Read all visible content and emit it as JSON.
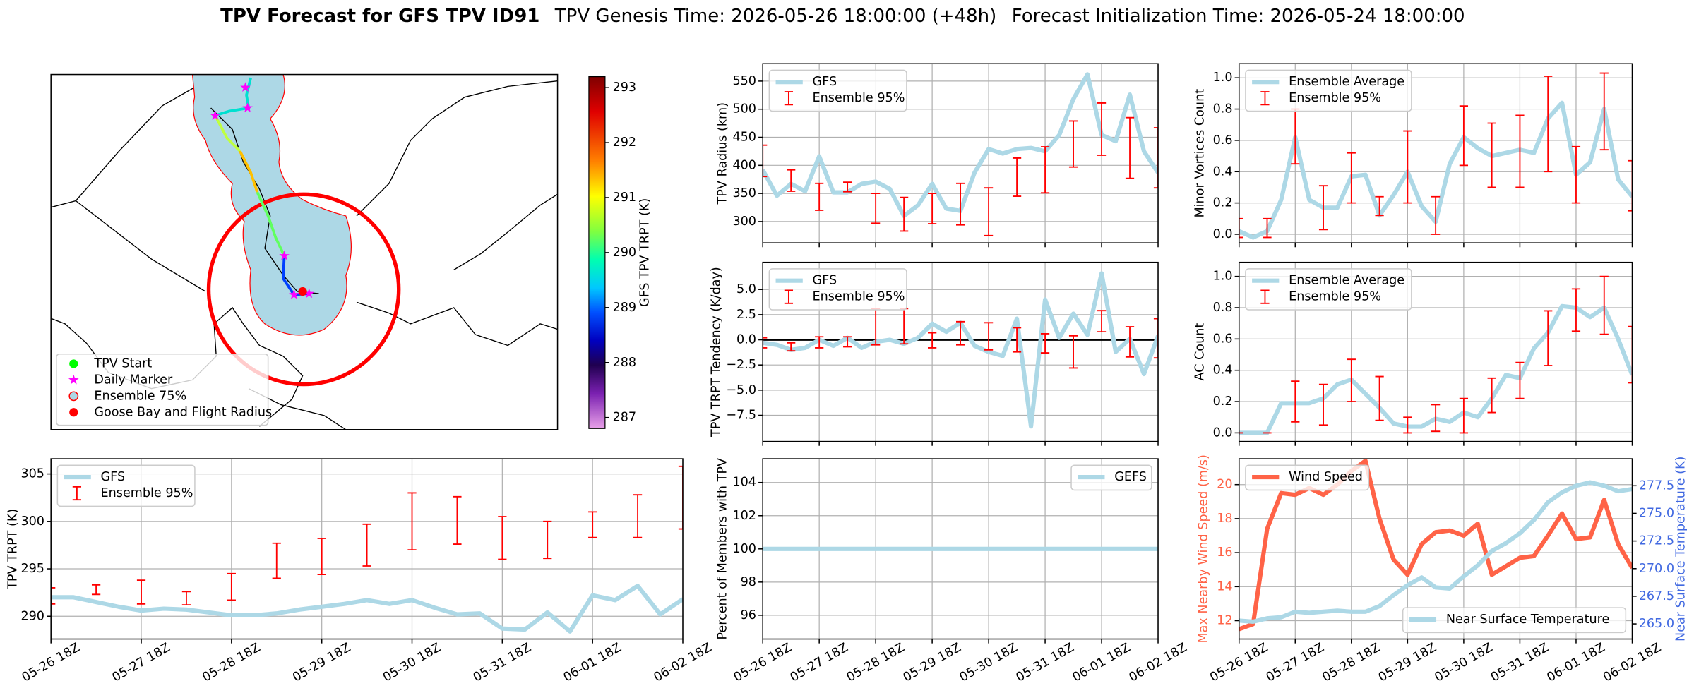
{
  "title": {
    "bold": "TPV Forecast for GFS TPV ID91",
    "genesis": "TPV Genesis Time: 2026-05-26 18:00:00 (+48h)",
    "init": "Forecast Initialization Time: 2026-05-24 18:00:00"
  },
  "map": {
    "legend": [
      "TPV Start",
      "Daily Marker",
      "Ensemble 75%",
      "Goose Bay and Flight Radius"
    ],
    "colorbar": {
      "label": "GFS TPV TRPT (K)",
      "lim": [
        286.8,
        293.2
      ],
      "ticks": [
        287,
        288,
        289,
        290,
        291,
        292,
        293
      ]
    }
  },
  "chart_data": [
    {
      "type": "line",
      "ylabel": "TPV Radius (km)",
      "ylim": [
        262,
        581
      ],
      "yticks": [
        300,
        350,
        400,
        450,
        500,
        550
      ],
      "grid": true,
      "legend": "upper left",
      "series": [
        {
          "name": "GFS",
          "color": "#add8e6",
          "values": [
            392,
            346,
            367,
            354,
            416,
            352,
            352,
            367,
            371,
            358,
            310,
            329,
            367,
            323,
            319,
            387,
            429,
            421,
            429,
            431,
            425,
            454,
            518,
            562,
            454,
            443,
            526,
            425,
            387
          ]
        },
        {
          "name": "Ensemble 95%",
          "color": "#ff0000",
          "kind": "errorbar",
          "low": [
            380,
            null,
            354,
            null,
            320,
            null,
            353,
            null,
            297,
            null,
            283,
            null,
            296,
            null,
            294,
            null,
            275,
            null,
            345,
            null,
            351,
            null,
            397,
            null,
            418,
            null,
            377,
            null,
            360
          ],
          "high": [
            436,
            null,
            392,
            null,
            368,
            null,
            370,
            null,
            350,
            null,
            343,
            null,
            350,
            null,
            368,
            null,
            360,
            null,
            413,
            null,
            433,
            null,
            479,
            null,
            511,
            null,
            485,
            null,
            467
          ]
        }
      ]
    },
    {
      "type": "line",
      "ylabel": "TPV TRPT Tendency (K/day)",
      "ylim": [
        -10.1,
        7.7
      ],
      "yticks": [
        {
          "value": -7.5,
          "label": "−7.5"
        },
        {
          "value": -5,
          "label": "−5.0"
        },
        {
          "value": -2.5,
          "label": "−2.5"
        },
        {
          "value": 0,
          "label": "0.0"
        },
        2.5,
        {
          "value": 5,
          "label": "5.0"
        }
      ],
      "grid": true,
      "legend": "upper left",
      "hline": 0,
      "series": [
        {
          "name": "GFS",
          "color": "#add8e6",
          "values": [
            -0.3,
            -0.5,
            -1.0,
            -0.8,
            0.0,
            -0.6,
            0.2,
            -0.8,
            -0.2,
            0.0,
            -0.4,
            0.2,
            1.6,
            0.8,
            1.7,
            -0.6,
            -1.2,
            -1.6,
            2.1,
            -8.6,
            4.0,
            0.2,
            2.6,
            0.5,
            6.6,
            -1.2,
            0.1,
            -3.4,
            0.4
          ]
        },
        {
          "name": "Ensemble 95%",
          "color": "#ff0000",
          "kind": "errorbar",
          "low": [
            -0.8,
            null,
            -1.1,
            null,
            -0.8,
            null,
            -0.7,
            null,
            -0.5,
            null,
            -0.4,
            null,
            -0.8,
            null,
            -0.5,
            null,
            -1.0,
            null,
            -1.2,
            null,
            -1.3,
            null,
            -2.8,
            null,
            0.8,
            null,
            -1.7,
            null,
            -1.8
          ],
          "high": [
            0.2,
            null,
            -0.3,
            null,
            0.3,
            null,
            0.3,
            null,
            3.1,
            null,
            3.1,
            null,
            0.7,
            null,
            1.8,
            null,
            1.7,
            null,
            1.2,
            null,
            0.6,
            null,
            0.4,
            null,
            2.9,
            null,
            1.3,
            null,
            2.1
          ]
        }
      ]
    },
    {
      "type": "line",
      "ylabel": "Percent of Members with TPV",
      "ylim": [
        94.57,
        105.43
      ],
      "yticks": [
        96,
        98,
        100,
        102,
        104
      ],
      "grid": true,
      "legend": "upper right",
      "categories": [
        "05-26 18Z",
        null,
        null,
        null,
        "05-27 18Z",
        null,
        null,
        null,
        "05-28 18Z",
        null,
        null,
        null,
        "05-29 18Z",
        null,
        null,
        null,
        "05-30 18Z",
        null,
        null,
        null,
        "05-31 18Z",
        null,
        null,
        null,
        "06-01 18Z",
        null,
        null,
        null,
        "06-02 18Z"
      ],
      "series": [
        {
          "name": "GEFS",
          "color": "#add8e6",
          "values": [
            100,
            100,
            100,
            100,
            100,
            100,
            100,
            100,
            100,
            100,
            100,
            100,
            100,
            100,
            100,
            100,
            100,
            100,
            100,
            100,
            100,
            100,
            100,
            100,
            100,
            100,
            100,
            100,
            100
          ]
        }
      ]
    },
    {
      "type": "line",
      "ylabel": "Minor Vortices Count",
      "ylim": [
        -0.055,
        1.09
      ],
      "yticks": [
        {
          "value": 0,
          "label": "0.0"
        },
        0.2,
        0.4,
        0.6,
        0.8,
        {
          "value": 1,
          "label": "1.0"
        }
      ],
      "grid": true,
      "legend": "upper left",
      "series": [
        {
          "name": "Ensemble Average",
          "color": "#add8e6",
          "values": [
            0.02,
            -0.02,
            0.02,
            0.22,
            0.62,
            0.22,
            0.17,
            0.17,
            0.37,
            0.38,
            0.12,
            0.25,
            0.4,
            0.18,
            0.08,
            0.45,
            0.62,
            0.55,
            0.5,
            0.52,
            0.54,
            0.52,
            0.74,
            0.84,
            0.38,
            0.46,
            0.8,
            0.35,
            0.24
          ]
        },
        {
          "name": "Ensemble 95%",
          "color": "#ff0000",
          "kind": "errorbar",
          "low": [
            -0.02,
            null,
            -0.02,
            null,
            0.45,
            null,
            0.03,
            null,
            0.2,
            null,
            0.12,
            null,
            0.2,
            null,
            0.0,
            null,
            0.44,
            null,
            0.3,
            null,
            0.3,
            null,
            0.4,
            null,
            0.2,
            null,
            0.54,
            null,
            0.15
          ],
          "high": [
            0.1,
            null,
            0.1,
            null,
            0.8,
            null,
            0.31,
            null,
            0.52,
            null,
            0.24,
            null,
            0.66,
            null,
            0.24,
            null,
            0.82,
            null,
            0.71,
            null,
            0.76,
            null,
            1.01,
            null,
            0.56,
            null,
            1.03,
            null,
            0.47
          ]
        }
      ]
    },
    {
      "type": "line",
      "ylabel": "AC Count",
      "ylim": [
        -0.055,
        1.09
      ],
      "yticks": [
        {
          "value": 0,
          "label": "0.0"
        },
        0.2,
        0.4,
        0.6,
        0.8,
        {
          "value": 1,
          "label": "1.0"
        }
      ],
      "grid": true,
      "legend": "upper left",
      "series": [
        {
          "name": "Ensemble Average",
          "color": "#add8e6",
          "values": [
            0,
            0,
            0,
            0.19,
            0.19,
            0.19,
            0.22,
            0.31,
            0.34,
            0.25,
            0.16,
            0.06,
            0.04,
            0.04,
            0.09,
            0.07,
            0.13,
            0.1,
            0.22,
            0.37,
            0.35,
            0.54,
            0.64,
            0.81,
            0.8,
            0.74,
            0.8,
            0.6,
            0.37
          ]
        },
        {
          "name": "Ensemble 95%",
          "color": "#ff0000",
          "kind": "errorbar",
          "low": [
            0,
            null,
            0,
            null,
            0.07,
            null,
            0.05,
            null,
            0.2,
            null,
            0.08,
            null,
            0,
            null,
            0.01,
            null,
            0,
            null,
            0.13,
            null,
            0.22,
            null,
            0.43,
            null,
            0.65,
            null,
            0.63,
            null,
            0.32
          ],
          "high": [
            0,
            null,
            0,
            null,
            0.33,
            null,
            0.31,
            null,
            0.47,
            null,
            0.36,
            null,
            0.1,
            null,
            0.18,
            null,
            0.22,
            null,
            0.35,
            null,
            0.45,
            null,
            0.78,
            null,
            0.92,
            null,
            1.0,
            null,
            0.68
          ]
        }
      ]
    },
    {
      "type": "line",
      "ylabel": "TPV TRPT (K)",
      "ylim": [
        287.6,
        306.6
      ],
      "yticks": [
        290,
        295,
        300,
        305
      ],
      "grid": true,
      "legend": "upper left",
      "categories": [
        "05-26 18Z",
        null,
        null,
        null,
        "05-27 18Z",
        null,
        null,
        null,
        "05-28 18Z",
        null,
        null,
        null,
        "05-29 18Z",
        null,
        null,
        null,
        "05-30 18Z",
        null,
        null,
        null,
        "05-31 18Z",
        null,
        null,
        null,
        "06-01 18Z",
        null,
        null,
        null,
        "06-02 18Z"
      ],
      "series": [
        {
          "name": "GFS",
          "color": "#add8e6",
          "values": [
            292.0,
            292.0,
            291.5,
            291.0,
            290.6,
            290.8,
            290.7,
            290.4,
            290.1,
            290.1,
            290.3,
            290.7,
            291.0,
            291.3,
            291.7,
            291.3,
            291.7,
            290.9,
            290.2,
            290.3,
            288.7,
            288.6,
            290.4,
            288.4,
            292.2,
            291.7,
            293.2,
            290.2,
            291.8
          ]
        },
        {
          "name": "Ensemble 95%",
          "color": "#ff0000",
          "kind": "errorbar",
          "low": [
            291.3,
            null,
            292.3,
            null,
            291.3,
            null,
            291.2,
            null,
            291.7,
            null,
            294.0,
            null,
            294.4,
            null,
            295.3,
            null,
            297.0,
            null,
            297.6,
            null,
            296.0,
            null,
            296.1,
            null,
            298.3,
            null,
            298.3,
            null,
            299.2
          ],
          "high": [
            293.0,
            null,
            293.3,
            null,
            293.8,
            null,
            292.6,
            null,
            294.5,
            null,
            297.7,
            null,
            298.2,
            null,
            299.7,
            null,
            303.0,
            null,
            302.6,
            null,
            300.5,
            null,
            300.0,
            null,
            301.0,
            null,
            302.8,
            null,
            305.8
          ]
        }
      ]
    },
    {
      "type": "line",
      "ylabel": "Max Nearby Wind Speed (m/s)",
      "ylabel_color": "#ff6347",
      "ylim": [
        10.92,
        21.52
      ],
      "yticks": [
        12,
        14,
        16,
        18,
        20
      ],
      "y2label": "Near Surface Temperature (K)",
      "y2label_color": "#4169e1",
      "y2lim": [
        263.63,
        279.94
      ],
      "y2ticks": [
        {
          "value": 265,
          "label": "265.0"
        },
        267.5,
        {
          "value": 270,
          "label": "270.0"
        },
        272.5,
        {
          "value": 275,
          "label": "275.0"
        },
        277.5
      ],
      "grid": true,
      "legend": "upper left",
      "legend_y2": "lower right",
      "categories": [
        "05-26 18Z",
        null,
        null,
        null,
        "05-27 18Z",
        null,
        null,
        null,
        "05-28 18Z",
        null,
        null,
        null,
        "05-29 18Z",
        null,
        null,
        null,
        "05-30 18Z",
        null,
        null,
        null,
        "05-31 18Z",
        null,
        null,
        null,
        "06-01 18Z",
        null,
        null,
        null,
        "06-02 18Z"
      ],
      "series": [
        {
          "name": "Wind Speed",
          "color": "#ff6347",
          "values": [
            11.5,
            11.8,
            17.4,
            19.5,
            19.4,
            19.8,
            19.4,
            20.0,
            20.8,
            21.4,
            18.0,
            15.6,
            14.7,
            16.5,
            17.2,
            17.3,
            17.0,
            17.7,
            14.7,
            15.2,
            15.7,
            15.8,
            17.0,
            18.3,
            16.8,
            16.9,
            19.1,
            16.5,
            15.1
          ]
        },
        {
          "name": "Near Surface Temperature",
          "color": "#add8e6",
          "axis": "y2",
          "values": [
            265.3,
            265.2,
            265.5,
            265.6,
            266.1,
            266.0,
            266.1,
            266.2,
            266.1,
            266.1,
            266.6,
            267.6,
            268.5,
            269.2,
            268.3,
            268.2,
            269.3,
            270.3,
            271.6,
            272.3,
            273.2,
            274.4,
            276.0,
            276.9,
            277.5,
            277.8,
            277.5,
            277.0,
            277.2
          ]
        }
      ]
    }
  ]
}
